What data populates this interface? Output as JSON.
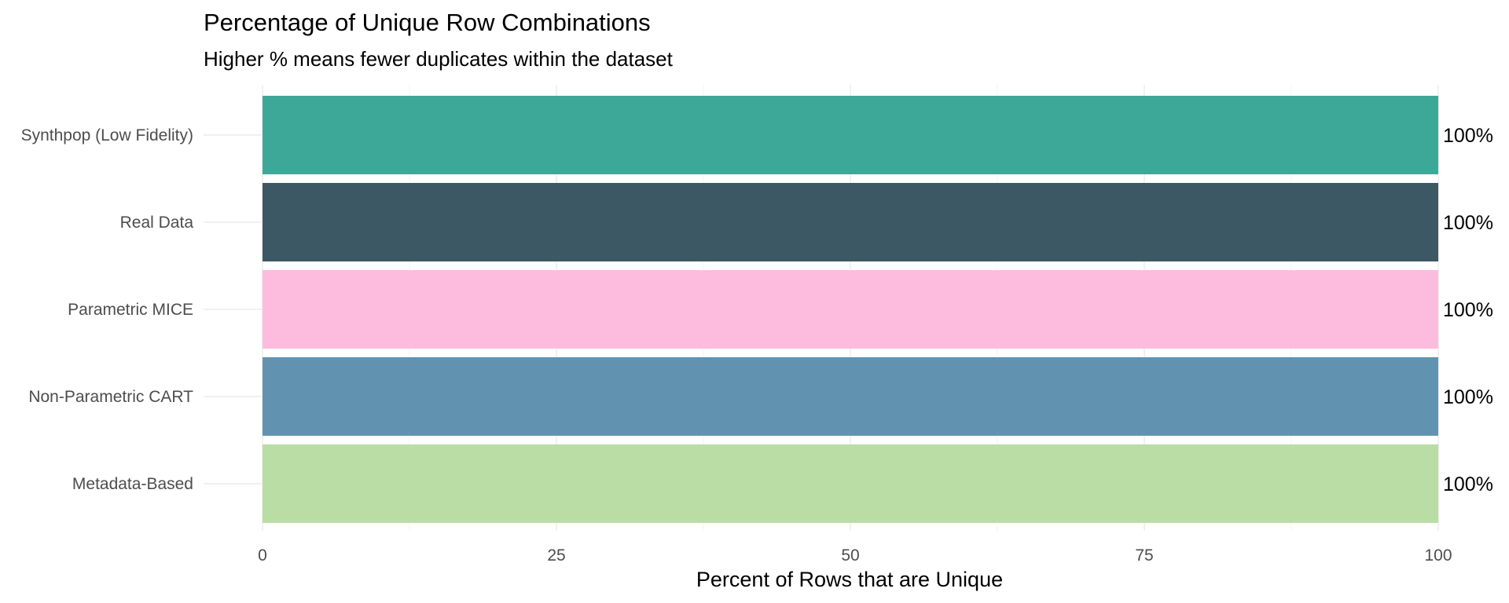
{
  "chart_data": {
    "type": "bar",
    "orientation": "horizontal",
    "title": "Percentage of Unique Row Combinations",
    "subtitle": "Higher % means fewer duplicates within the dataset",
    "xlabel": "Percent of Rows that are Unique",
    "ylabel": "",
    "xlim": [
      0,
      100
    ],
    "x_ticks": [
      0,
      25,
      50,
      75,
      100
    ],
    "grid": true,
    "legend": "none",
    "categories": [
      "Synthpop (Low Fidelity)",
      "Real Data",
      "Parametric MICE",
      "Non-Parametric CART",
      "Metadata-Based"
    ],
    "values": [
      100,
      100,
      100,
      100,
      100
    ],
    "data_labels": [
      "100%",
      "100%",
      "100%",
      "100%",
      "100%"
    ],
    "colors": [
      "#3ea898",
      "#3d5865",
      "#fdbcdd",
      "#6193b1",
      "#badd a5"
    ]
  }
}
